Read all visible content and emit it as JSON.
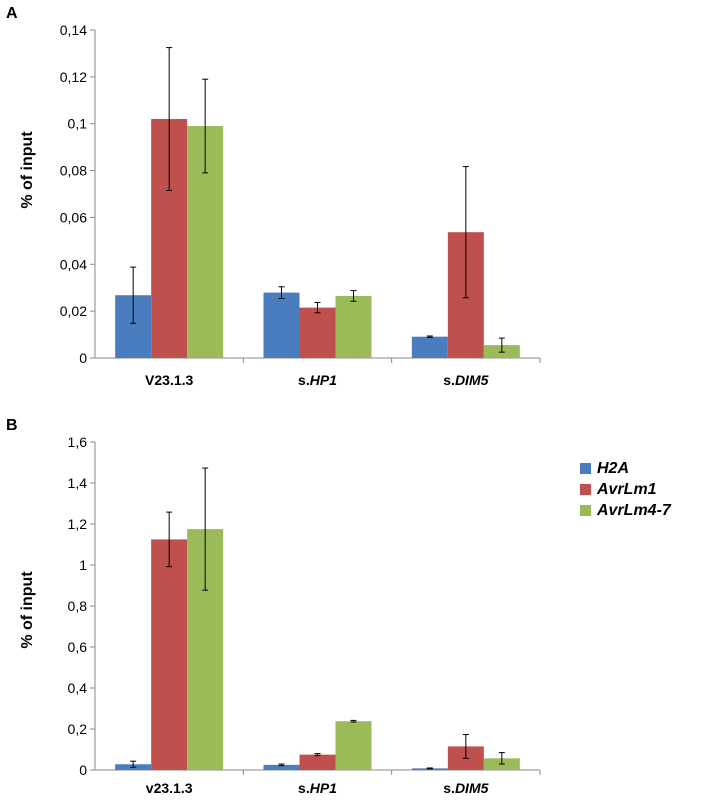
{
  "colors": {
    "H2A": "#4a7dbf",
    "AvrLm1": "#c0504d",
    "AvrLm4-7": "#9bbb59"
  },
  "legend": {
    "items": [
      "H2A",
      "AvrLm1",
      "AvrLm4-7"
    ]
  },
  "chart_data": [
    {
      "type": "bar",
      "panel_label": "A",
      "ylabel": "% of input",
      "ylim": [
        0,
        0.14
      ],
      "yticks": [
        0,
        0.02,
        0.04,
        0.06,
        0.08,
        0.1,
        0.12,
        0.14
      ],
      "ytick_labels": [
        "0",
        "0,02",
        "0,04",
        "0,06",
        "0,08",
        "0,1",
        "0,12",
        "0,14"
      ],
      "categories": [
        {
          "prefix": "V23.1.3",
          "italic": ""
        },
        {
          "prefix": "s.",
          "italic": "HP1"
        },
        {
          "prefix": "s.",
          "italic": "DIM5"
        }
      ],
      "series": [
        {
          "name": "H2A",
          "values": [
            0.0268,
            0.0279,
            0.0091
          ],
          "errors": [
            0.012,
            0.0025,
            0.0003
          ]
        },
        {
          "name": "AvrLm1",
          "values": [
            0.102,
            0.0215,
            0.0537
          ],
          "errors": [
            0.0305,
            0.0022,
            0.028
          ]
        },
        {
          "name": "AvrLm4-7",
          "values": [
            0.099,
            0.0265,
            0.0055
          ],
          "errors": [
            0.02,
            0.0023,
            0.003
          ]
        }
      ],
      "grid": false,
      "legend": "none"
    },
    {
      "type": "bar",
      "panel_label": "B",
      "ylabel": "% of input",
      "ylim": [
        0,
        1.6
      ],
      "yticks": [
        0,
        0.2,
        0.4,
        0.6,
        0.8,
        1,
        1.2,
        1.4,
        1.6
      ],
      "ytick_labels": [
        "0",
        "0,2",
        "0,4",
        "0,6",
        "0,8",
        "1",
        "1,2",
        "1,4",
        "1,6"
      ],
      "categories": [
        {
          "prefix": "v23.1.3",
          "italic": ""
        },
        {
          "prefix": "s.",
          "italic": "HP1"
        },
        {
          "prefix": "s.",
          "italic": "DIM5"
        }
      ],
      "series": [
        {
          "name": "H2A",
          "values": [
            0.028,
            0.025,
            0.008
          ],
          "errors": [
            0.015,
            0.004,
            0.002
          ]
        },
        {
          "name": "AvrLm1",
          "values": [
            1.125,
            0.075,
            0.115
          ],
          "errors": [
            0.133,
            0.005,
            0.058
          ]
        },
        {
          "name": "AvrLm4-7",
          "values": [
            1.175,
            0.238,
            0.057
          ],
          "errors": [
            0.298,
            0.004,
            0.028
          ]
        }
      ],
      "grid": false,
      "legend": "right"
    }
  ]
}
